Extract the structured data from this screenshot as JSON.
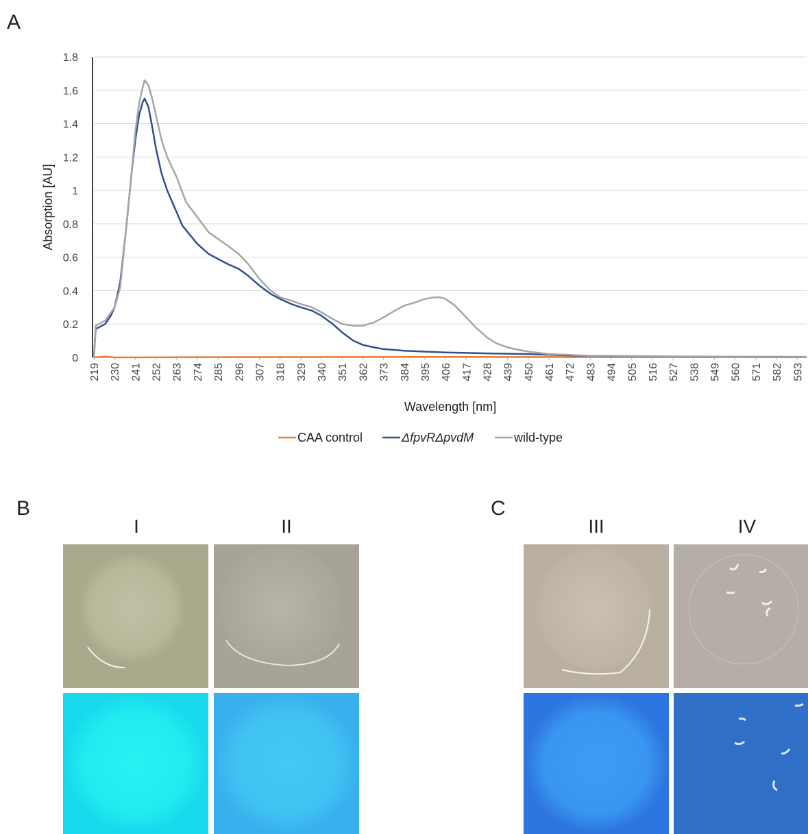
{
  "chart_data": {
    "type": "line",
    "panel_label": "A",
    "x_label": "Wavelength [nm]",
    "y_label": "Absorption [AU]",
    "xlim": [
      219,
      598
    ],
    "xticks": [
      219,
      230,
      241,
      252,
      263,
      274,
      285,
      296,
      307,
      318,
      329,
      340,
      351,
      362,
      373,
      384,
      395,
      406,
      417,
      428,
      439,
      450,
      461,
      472,
      483,
      494,
      505,
      516,
      527,
      538,
      549,
      560,
      571,
      582,
      593
    ],
    "ylim": [
      0,
      1.8
    ],
    "yticks": [
      0,
      0.2,
      0.4,
      0.6,
      0.8,
      1,
      1.2,
      1.4,
      1.6,
      1.8
    ],
    "grid": true,
    "legend": "bottom",
    "series": [
      {
        "name": "CAA control",
        "color": "#ed7d31",
        "x": [
          219,
          225,
          230,
          300,
          400,
          598
        ],
        "values": [
          0,
          0.005,
          0,
          0.002,
          0.003,
          0.002
        ]
      },
      {
        "name": "ΔfpvRΔpvdM",
        "color": "#2f4f8f",
        "x": [
          219,
          220,
          225,
          228,
          230,
          233,
          236,
          239,
          241,
          243,
          245,
          246,
          248,
          250,
          252,
          255,
          258,
          263,
          266,
          274,
          280,
          285,
          290,
          296,
          301,
          307,
          313,
          318,
          324,
          329,
          335,
          340,
          346,
          351,
          357,
          362,
          368,
          373,
          384,
          395,
          406,
          417,
          428,
          439,
          450,
          461,
          472,
          483,
          494,
          527,
          560,
          598
        ],
        "values": [
          0,
          0.17,
          0.2,
          0.25,
          0.3,
          0.45,
          0.75,
          1.1,
          1.3,
          1.45,
          1.53,
          1.55,
          1.5,
          1.38,
          1.25,
          1.1,
          1.0,
          0.87,
          0.79,
          0.68,
          0.62,
          0.59,
          0.56,
          0.53,
          0.49,
          0.43,
          0.38,
          0.35,
          0.32,
          0.3,
          0.28,
          0.25,
          0.2,
          0.15,
          0.1,
          0.075,
          0.06,
          0.05,
          0.04,
          0.035,
          0.03,
          0.027,
          0.024,
          0.022,
          0.02,
          0.016,
          0.012,
          0.009,
          0.007,
          0.005,
          0.004,
          0.003
        ]
      },
      {
        "name": "wild-type",
        "color": "#a5a5a5",
        "x": [
          219,
          220,
          225,
          230,
          233,
          236,
          239,
          241,
          243,
          245,
          246,
          248,
          250,
          252,
          255,
          258,
          263,
          268,
          274,
          280,
          285,
          290,
          296,
          301,
          307,
          313,
          318,
          324,
          329,
          335,
          340,
          346,
          351,
          357,
          362,
          368,
          373,
          379,
          384,
          390,
          395,
          400,
          403,
          406,
          411,
          417,
          422,
          428,
          433,
          439,
          445,
          450,
          461,
          472,
          483,
          494,
          505,
          527,
          560,
          598
        ],
        "values": [
          0,
          0.19,
          0.22,
          0.3,
          0.42,
          0.75,
          1.1,
          1.35,
          1.52,
          1.62,
          1.66,
          1.63,
          1.55,
          1.45,
          1.3,
          1.2,
          1.08,
          0.93,
          0.84,
          0.75,
          0.71,
          0.67,
          0.62,
          0.56,
          0.47,
          0.4,
          0.36,
          0.34,
          0.32,
          0.3,
          0.27,
          0.23,
          0.2,
          0.19,
          0.19,
          0.21,
          0.24,
          0.28,
          0.31,
          0.33,
          0.35,
          0.36,
          0.36,
          0.35,
          0.31,
          0.24,
          0.18,
          0.12,
          0.085,
          0.06,
          0.045,
          0.035,
          0.02,
          0.015,
          0.01,
          0.01,
          0.008,
          0.006,
          0.005,
          0.004
        ]
      }
    ]
  },
  "panels": [
    {
      "label": "B",
      "columns": [
        "I",
        "II"
      ]
    },
    {
      "label": "C",
      "columns": [
        "III",
        "IV"
      ]
    }
  ]
}
